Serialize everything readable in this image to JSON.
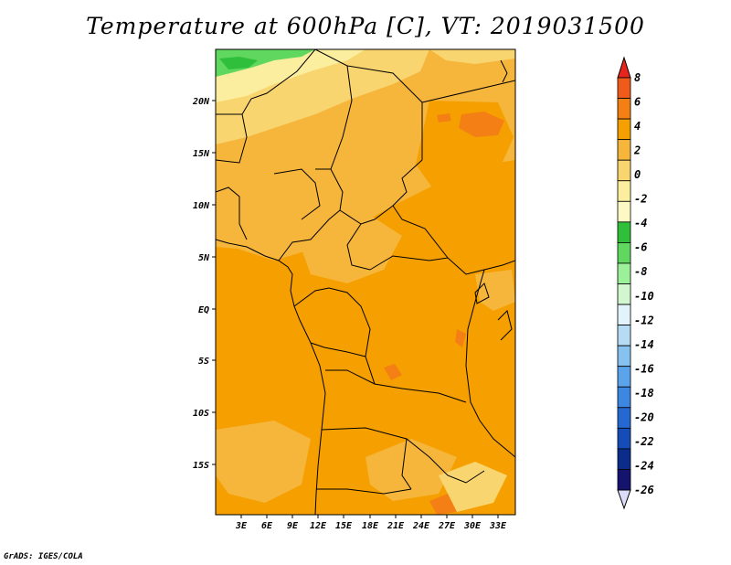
{
  "title": "Temperature at 600hPa [C], VT: 2019031500",
  "credit": "GrADS: IGES/COLA",
  "map": {
    "lat_labels": [
      "20N",
      "15N",
      "10N",
      "5N",
      "EQ",
      "5S",
      "10S",
      "15S"
    ],
    "lon_labels": [
      "3E",
      "6E",
      "9E",
      "12E",
      "15E",
      "18E",
      "21E",
      "24E",
      "27E",
      "30E",
      "33E"
    ]
  },
  "colorbar": {
    "labels": [
      "8",
      "6",
      "4",
      "2",
      "0",
      "-2",
      "-4",
      "-6",
      "-8",
      "-10",
      "-12",
      "-14",
      "-16",
      "-18",
      "-20",
      "-22",
      "-24",
      "-26"
    ],
    "colors": [
      "#e6251d",
      "#f05a1a",
      "#f47f14",
      "#f5a000",
      "#f6b63c",
      "#f9d570",
      "#fbee9e",
      "#fdf9c4",
      "#2fbf3b",
      "#60d860",
      "#9df09a",
      "#d2f7d0",
      "#e2f3fb",
      "#b6dbf5",
      "#87c1f0",
      "#5ba4eb",
      "#3d86e2",
      "#2568d2",
      "#164cb8",
      "#0c2c8c",
      "#14146e",
      "#dcdcf8"
    ]
  }
}
